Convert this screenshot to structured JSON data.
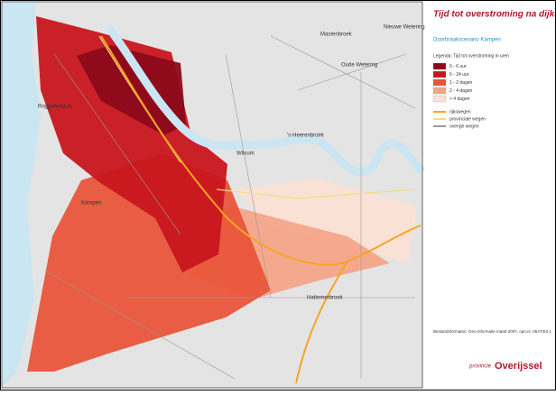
{
  "title": "Tijd tot overstroming na dijkdoorbraak",
  "subtitle": "Doorbraakscenario Kampen",
  "legend": {
    "title": "Legenda: Tijd tot overstroming in uren",
    "flood_classes": [
      {
        "label": "0 - 6 uur",
        "color": "#8b0a1a"
      },
      {
        "label": "6 - 24 uur",
        "color": "#c8161e"
      },
      {
        "label": "1 - 2 dagen",
        "color": "#e8553a"
      },
      {
        "label": "2 - 4 dagen",
        "color": "#f4a58a"
      },
      {
        "label": "> 4 dagen",
        "color": "#fbe0d4"
      }
    ],
    "roads": [
      {
        "label": "rijkswegen",
        "color": "#f5a623"
      },
      {
        "label": "provinciale wegen",
        "color": "#f3dc85"
      },
      {
        "label": "overige wegen",
        "color": "#9a9a9a"
      }
    ]
  },
  "footer": "Bestandsformaten: Geo-informatie maart 2007, opn.nr. 06AT4I3.1",
  "logo": {
    "prefix": "provincie",
    "name": "Overijssel"
  },
  "places": [
    "Mastenbroek",
    "Nieuwe Wetering",
    "Oude Wetering",
    "Roggebotsluis",
    "'s-Heerenbroek",
    "Kampen",
    "Wilsum",
    "Hattemerbroek"
  ]
}
